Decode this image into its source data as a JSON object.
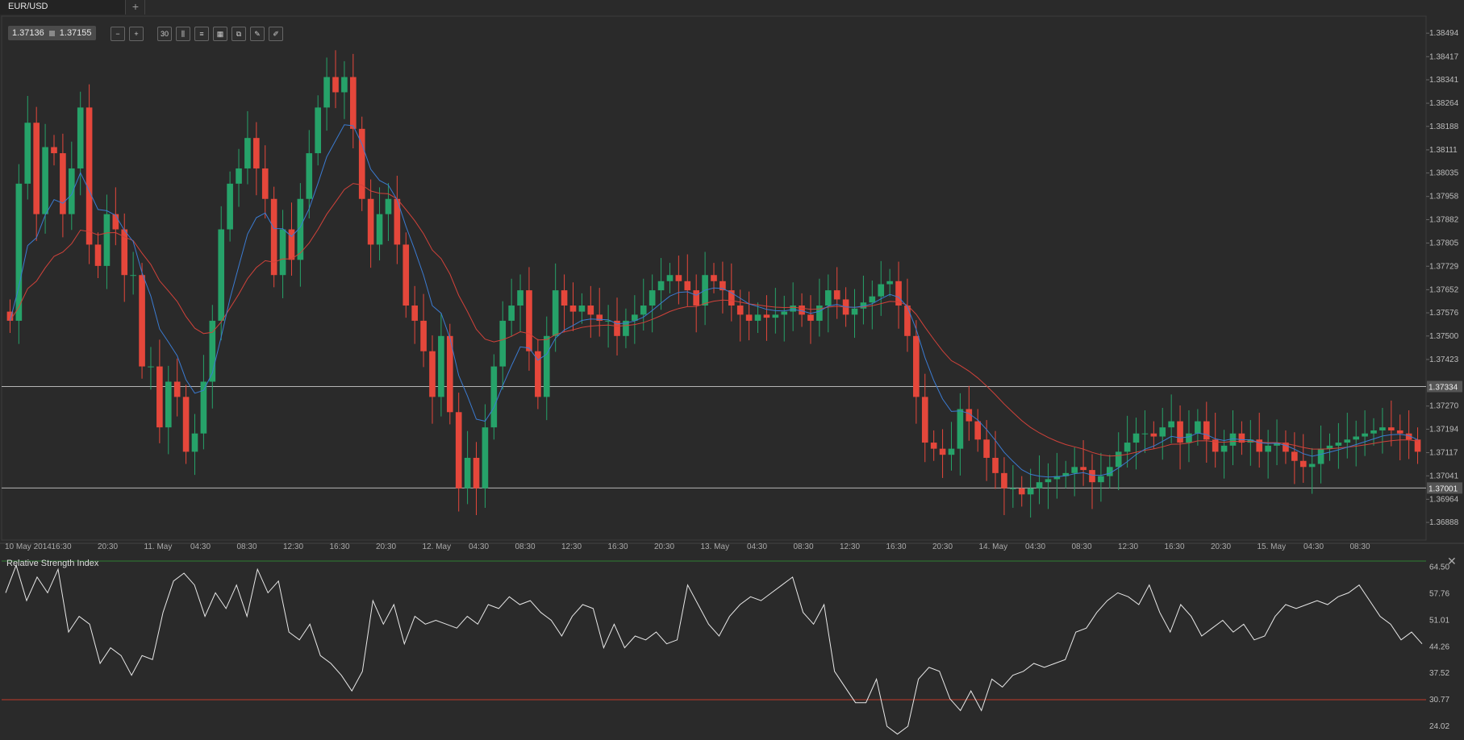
{
  "tabs": [
    {
      "label": "EUR/USD"
    }
  ],
  "add_tab_label": "+",
  "quote": {
    "bid": "1.37136",
    "ask": "1.37155"
  },
  "toolbar": [
    {
      "name": "zoom-out-icon",
      "glyph": "−"
    },
    {
      "name": "zoom-in-icon",
      "glyph": "+"
    },
    {
      "name": "timeframe-icon",
      "glyph": "30"
    },
    {
      "name": "candle-type-icon",
      "glyph": "⫼"
    },
    {
      "name": "indicators-icon",
      "glyph": "≡"
    },
    {
      "name": "chart-settings-icon",
      "glyph": "▦"
    },
    {
      "name": "template-icon",
      "glyph": "⧉"
    },
    {
      "name": "draw-icon",
      "glyph": "✎"
    },
    {
      "name": "draw-tools-icon",
      "glyph": "✐"
    }
  ],
  "close_label": "✕",
  "colors": {
    "up": "#26a269",
    "down": "#e5473b",
    "ma_fast": "#3b7bd1",
    "ma_slow": "#d1423a",
    "rsi_line": "#e8e8e8",
    "rsi_level": "#c0392b",
    "bg": "#2a2a2a",
    "grid": "#3a3a3a",
    "hline": "#b5b5b5"
  },
  "chart_data": [
    {
      "type": "candlestick",
      "title": "EUR/USD",
      "y_ticks": [
        "1.38494",
        "1.38417",
        "1.38341",
        "1.38264",
        "1.38188",
        "1.38111",
        "1.38035",
        "1.37958",
        "1.37882",
        "1.37805",
        "1.37729",
        "1.37652",
        "1.37576",
        "1.37500",
        "1.37423",
        "1.37270",
        "1.37194",
        "1.37117",
        "1.37041",
        "1.36964",
        "1.36888"
      ],
      "ylim": [
        1.3683,
        1.3855
      ],
      "x_ticks": [
        "10 May 2014",
        "16:30",
        "20:30",
        "11. May",
        "04:30",
        "08:30",
        "12:30",
        "16:30",
        "20:30",
        "12. May",
        "04:30",
        "08:30",
        "12:30",
        "16:30",
        "20:30",
        "13. May",
        "04:30",
        "08:30",
        "12:30",
        "16:30",
        "20:30",
        "14. May",
        "04:30",
        "08:30",
        "12:30",
        "16:30",
        "20:30",
        "15. May",
        "04:30",
        "08:30"
      ],
      "horizontal_lines": [
        {
          "value": 1.37334,
          "label": "1.37334"
        },
        {
          "value": 1.37001,
          "label": "1.37001"
        }
      ],
      "series": [
        {
          "name": "close",
          "values": [
            1.3755,
            1.38,
            1.382,
            1.379,
            1.3812,
            1.381,
            1.379,
            1.3805,
            1.3825,
            1.378,
            1.3773,
            1.379,
            1.3785,
            1.377,
            1.377,
            1.374,
            1.374,
            1.372,
            1.3735,
            1.373,
            1.3712,
            1.3718,
            1.3735,
            1.3755,
            1.3785,
            1.38,
            1.3805,
            1.3815,
            1.3805,
            1.3795,
            1.377,
            1.3785,
            1.3775,
            1.3795,
            1.381,
            1.3825,
            1.3835,
            1.383,
            1.3835,
            1.3818,
            1.3795,
            1.378,
            1.379,
            1.3795,
            1.378,
            1.376,
            1.3755,
            1.3745,
            1.373,
            1.375,
            1.3725,
            1.37,
            1.371,
            1.37,
            1.372,
            1.374,
            1.3755,
            1.376,
            1.3765,
            1.3745,
            1.373,
            1.375,
            1.3765,
            1.376,
            1.3758,
            1.376,
            1.3757,
            1.3755,
            1.3755,
            1.375,
            1.3755,
            1.3757,
            1.376,
            1.3765,
            1.3768,
            1.377,
            1.3768,
            1.3765,
            1.376,
            1.377,
            1.3768,
            1.3765,
            1.376,
            1.3757,
            1.3755,
            1.3757,
            1.3756,
            1.3757,
            1.3758,
            1.376,
            1.3757,
            1.3755,
            1.376,
            1.3765,
            1.3762,
            1.3757,
            1.3759,
            1.3761,
            1.3763,
            1.3767,
            1.3768,
            1.376,
            1.375,
            1.373,
            1.3715,
            1.3713,
            1.3711,
            1.3713,
            1.3726,
            1.3722,
            1.3716,
            1.371,
            1.3705,
            1.37,
            1.37,
            1.3698,
            1.37,
            1.3702,
            1.3703,
            1.3704,
            1.3705,
            1.3707,
            1.3706,
            1.3702,
            1.3704,
            1.3707,
            1.3712,
            1.3715,
            1.3718,
            1.3718,
            1.3717,
            1.372,
            1.3722,
            1.3715,
            1.3718,
            1.3722,
            1.3716,
            1.3712,
            1.3714,
            1.3718,
            1.3715,
            1.3716,
            1.3712,
            1.3714,
            1.3715,
            1.3712,
            1.3709,
            1.3707,
            1.3708,
            1.3713,
            1.3714,
            1.3715,
            1.3716,
            1.3717,
            1.3718,
            1.3719,
            1.372,
            1.3719,
            1.3718,
            1.3716,
            1.3712
          ]
        },
        {
          "name": "MA fast",
          "values": []
        },
        {
          "name": "MA slow",
          "values": []
        }
      ]
    },
    {
      "type": "line",
      "title": "Relative Strength Index",
      "y_ticks": [
        "64.50",
        "57.76",
        "51.01",
        "44.26",
        "37.52",
        "30.77",
        "24.02"
      ],
      "ylim": [
        20.5,
        66.5
      ],
      "level": 30.77,
      "series": [
        {
          "name": "RSI",
          "values": [
            58,
            65,
            56,
            62,
            58,
            64,
            48,
            52,
            50,
            40,
            44,
            42,
            37,
            42,
            41,
            53,
            61,
            63,
            60,
            52,
            58,
            54,
            60,
            52,
            64,
            58,
            61,
            48,
            46,
            50,
            42,
            40,
            37,
            33,
            38,
            56,
            50,
            55,
            45,
            52,
            50,
            51,
            50,
            49,
            52,
            50,
            55,
            54,
            57,
            55,
            56,
            53,
            51,
            47,
            52,
            55,
            54,
            44,
            50,
            44,
            47,
            46,
            48,
            45,
            46,
            60,
            55,
            50,
            47,
            52,
            55,
            57,
            56,
            58,
            60,
            62,
            53,
            50,
            55,
            38,
            34,
            30,
            30,
            36,
            24,
            22,
            24,
            36,
            39,
            38,
            31,
            28,
            33,
            28,
            36,
            34,
            37,
            38,
            40,
            39,
            40,
            41,
            48,
            49,
            53,
            56,
            58,
            57,
            55,
            60,
            53,
            48,
            55,
            52,
            47,
            49,
            51,
            48,
            50,
            46,
            47,
            52,
            55,
            54,
            55,
            56,
            55,
            57,
            58,
            60,
            56,
            52,
            50,
            46,
            48,
            45
          ]
        }
      ]
    }
  ]
}
